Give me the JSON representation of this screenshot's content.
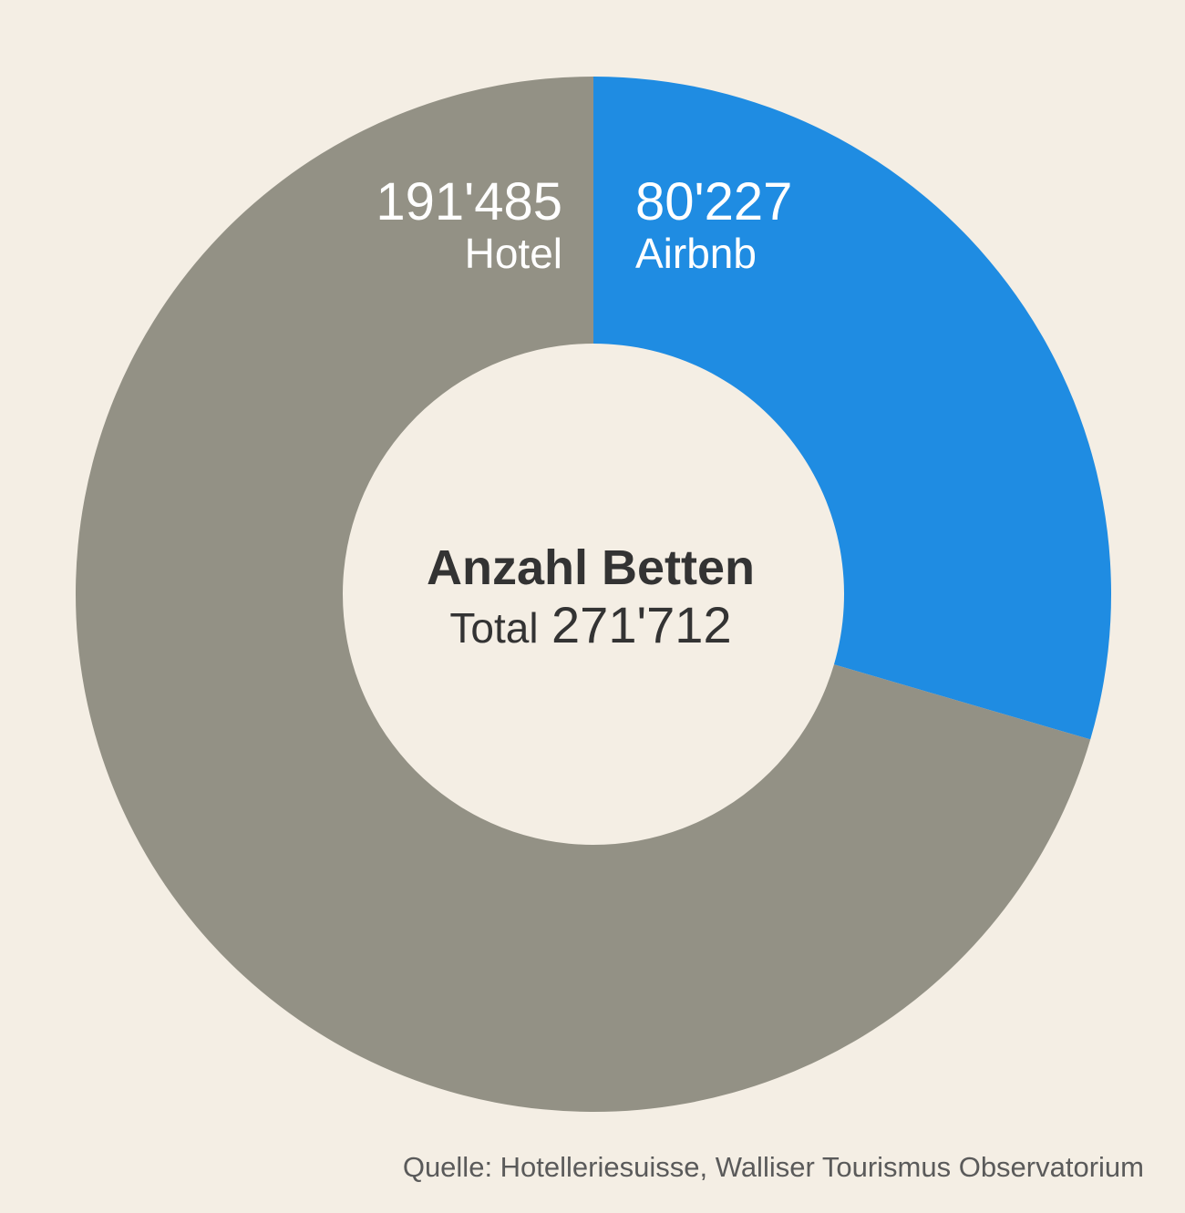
{
  "chart_data": {
    "type": "pie",
    "donut": true,
    "title": "Anzahl Betten",
    "categories": [
      "Airbnb",
      "Hotel"
    ],
    "values": [
      80227,
      191485
    ],
    "value_labels": [
      "80'227",
      "191'485"
    ],
    "colors": [
      "#1f8ce2",
      "#939185"
    ],
    "total_label": "Total",
    "total": {
      "value": 271712,
      "label": "271'712"
    },
    "source": "Quelle: Hotelleriesuisse, Walliser Tourismus Observatorium"
  }
}
